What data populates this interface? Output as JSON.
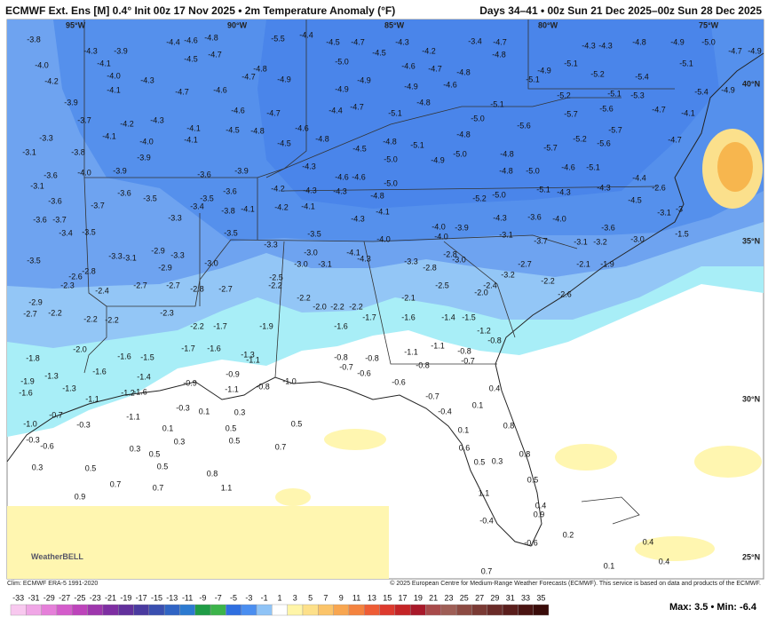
{
  "header": {
    "title": "ECMWF Ext. Ens [M] 0.4° Init 00z 17 Nov 2025 • 2m Temperature Anomaly (°F)",
    "valid": "Days 34–41 • 00z Sun 21 Dec 2025–00z Sun 28 Dec 2025"
  },
  "map": {
    "lon_labels": [
      "95°W",
      "90°W",
      "85°W",
      "80°W",
      "75°W"
    ],
    "lat_labels": [
      "40°N",
      "35°N",
      "30°N",
      "25°N"
    ],
    "logo": "WeatherBELL",
    "labels": [
      "-3.8",
      "-4.3",
      "-3.9",
      "-4.4",
      "-4.6",
      "-4.8",
      "-4.7",
      "-4.5",
      "-5.5",
      "-4.4",
      "-4.5",
      "-4.7",
      "-4.3",
      "-4.5",
      "-4.2",
      "-4.7",
      "-4.8",
      "-3.4",
      "-4.3",
      "-4.3",
      "-4.8",
      "-4.9",
      "-5.0",
      "-4.7",
      "-4.9",
      "-4.0",
      "-4.1",
      "-4.0",
      "-4.3",
      "-4.2",
      "-4.1",
      "-4.7",
      "-4.6",
      "-4.8",
      "-4.7",
      "-4.9",
      "-5.0",
      "-4.9",
      "-4.9",
      "-4.6",
      "-4.7",
      "-4.9",
      "-4.8",
      "-4.6",
      "-4.9",
      "-5.1",
      "-5.2",
      "-5.4",
      "-5.1",
      "-5.1",
      "-5.4",
      "-4.9",
      "-5.2",
      "-5.1",
      "-5.3",
      "-3.9",
      "-3.7",
      "-4.2",
      "-4.3",
      "-4.1",
      "-4.6",
      "-4.7",
      "-4.4",
      "-4.7",
      "-5.1",
      "-4.8",
      "-5.0",
      "-5.1",
      "-5.6",
      "-5.7",
      "-5.6",
      "-4.7",
      "-4.1",
      "-3.3",
      "-4.0",
      "-4.1",
      "-4.1",
      "-4.5",
      "-4.8",
      "-4.6",
      "-4.5",
      "-4.8",
      "-4.5",
      "-4.8",
      "-5.1",
      "-4.8",
      "-5.2",
      "-5.7",
      "-5.6",
      "-4.7",
      "-3.1",
      "-3.8",
      "-3.9",
      "-5.7",
      "-5.0",
      "-4.9",
      "-5.0",
      "-4.8",
      "-4.3",
      "-3.6",
      "-4.0",
      "-3.9",
      "-3.6",
      "-3.9",
      "-4.6",
      "-4.6",
      "-5.0",
      "-5.0",
      "-4.8",
      "-4.6",
      "-5.1",
      "-4.4",
      "-3.1",
      "-3.6",
      "-3.5",
      "-3.5",
      "-3.6",
      "-4.2",
      "-4.3",
      "-4.3",
      "-4.8",
      "-5.2",
      "-5.0",
      "-5.1",
      "-4.3",
      "-4.3",
      "-2.6",
      "-3.6",
      "-3.7",
      "-3.4",
      "-3.8",
      "-4.1",
      "-4.2",
      "-4.1",
      "-4.1",
      "-4.5",
      "-3",
      "-3.6",
      "-3.7",
      "-3.3",
      "-4.3",
      "-4.3",
      "-3.6",
      "-4.0",
      "-3.1",
      "-3.4",
      "-3.5",
      "-3.5",
      "-3.5",
      "-4.0",
      "-3.9",
      "-4.0",
      "-4.0",
      "-3.1",
      "-3.7",
      "-3.1",
      "-3.2",
      "-3.6",
      "-3.0",
      "-1.5",
      "-2.9",
      "-3.3",
      "-3.1",
      "-3.3",
      "-3.3",
      "-3.0",
      "-4.1",
      "-4.3",
      "-3.3",
      "-2.8",
      "-2.8",
      "-3.0",
      "-3.5",
      "-3.0",
      "-2.9",
      "-3.0",
      "-3.1",
      "-2.7",
      "-2.1",
      "-1.9",
      "-2.8",
      "-2.6",
      "-2.5",
      "-3.2",
      "-2.3",
      "-2.4",
      "-2.7",
      "-2.7",
      "-2.8",
      "-2.7",
      "-2.2",
      "-2.5",
      "-2.4",
      "-2.2",
      "-2.0",
      "-2.6",
      "-2.9",
      "-2.2",
      "-2.1",
      "-2.7",
      "-2.2",
      "-2.3",
      "-2.0",
      "-2.2",
      "-2.2",
      "-2.2",
      "-2.2",
      "-1.7",
      "-1.6",
      "-1.4",
      "-1.5",
      "-2.2",
      "-1.7",
      "-1.9",
      "-1.6",
      "-1.2",
      "-0.8",
      "-2.0",
      "-1.7",
      "-1.6",
      "-1.3",
      "-1.1",
      "-1.1",
      "-0.8",
      "-1.8",
      "-1.6",
      "-1.5",
      "-1.1",
      "-0.8",
      "-0.8",
      "-0.7",
      "-0.8",
      "-0.7",
      "-1.3",
      "-1.6",
      "-1.4",
      "-0.9",
      "-0.6",
      "-1.9",
      "-0.9",
      "-0.8",
      "-1.0",
      "-0.6",
      "-1.3",
      "-1.6",
      "-1.2",
      "-1.6",
      "-1.1",
      "0.4",
      "-1.1",
      "-0.7",
      "0.1",
      "-0.3",
      "-0.7",
      "-1.1",
      "0.1",
      "0.3",
      "-0.4",
      "-1.0",
      "-0.3",
      "0.1",
      "0.5",
      "0.5",
      "0.8",
      "-0.3",
      "-0.6",
      "0.3",
      "0.5",
      "0.1",
      "0.7",
      "0.3",
      "0.5",
      "0.8",
      "0.6",
      "0.3",
      "0.5",
      "0.5",
      "0.5",
      "0.3",
      "0.8",
      "0.5",
      "0.7",
      "0.7",
      "1.1",
      "0.9",
      "1.1",
      "0.4",
      "0.9",
      "-0.4",
      "0.2",
      "0.4",
      "-0.6",
      "0.1",
      "0.4",
      "0.7"
    ]
  },
  "colorbar": {
    "ticks": [
      -33,
      -31,
      -29,
      -27,
      -25,
      -23,
      -21,
      -19,
      -17,
      -15,
      -13,
      -11,
      -9,
      -7,
      -5,
      -3,
      -1,
      1,
      3,
      5,
      7,
      9,
      11,
      13,
      15,
      17,
      19,
      21,
      23,
      25,
      27,
      29,
      31,
      33,
      35
    ],
    "colors": [
      "#f8c8ef",
      "#f0a6e6",
      "#e57fd9",
      "#d45ccb",
      "#bd44bb",
      "#9e36ad",
      "#7e2ea2",
      "#62309c",
      "#4a3a9f",
      "#3a4fb0",
      "#3064c4",
      "#2c7ad0",
      "#1f9c46",
      "#3cb44a",
      "#2f6fe0",
      "#4a8ef0",
      "#8fc3f6",
      "#ffffff",
      "#fff5a8",
      "#fde08a",
      "#fbc46a",
      "#f8a650",
      "#f4833f",
      "#ee5c35",
      "#dd3a2e",
      "#c42426",
      "#a8192a",
      "#a84a4a",
      "#9e5e56",
      "#8c4a42",
      "#7a3a34",
      "#6a2b28",
      "#5a1e1c",
      "#4a1412",
      "#3a0c0a"
    ],
    "max_min": "Max: 3.5 • Min: -6.4"
  },
  "footer": {
    "clim": "Clim: ECMWF ERA-5 1991-2020",
    "copyright": "© 2025 European Centre for Medium-Range Weather Forecasts (ECMWF). This service is based on data and products of the ECMWF."
  }
}
